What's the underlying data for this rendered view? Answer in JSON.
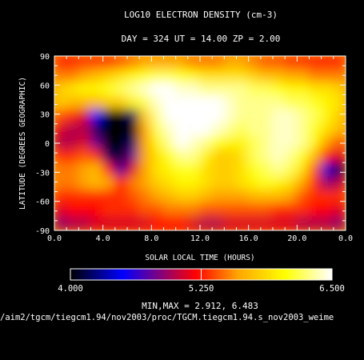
{
  "chart_data": {
    "type": "heatmap",
    "title": "LOG10 ELECTRON DENSITY (cm-3)",
    "subtitle": "DAY = 324   UT = 14.00   ZP =    2.00",
    "xlabel": "SOLAR LOCAL TIME (HOURS)",
    "ylabel": "LATITUDE (DEGREES GEOGRAPHIC)",
    "x_ticks": [
      "0.0",
      "4.0",
      "8.0",
      "12.0",
      "16.0",
      "20.0",
      "0.0"
    ],
    "y_ticks": [
      "90",
      "60",
      "30",
      "0",
      "-30",
      "-60",
      "-90"
    ],
    "xlim": [
      0,
      24
    ],
    "ylim": [
      -90,
      90
    ],
    "colorbar": {
      "min": 4.0,
      "max": 6.5,
      "tick_labels": [
        "4.000",
        "5.250",
        "6.500"
      ],
      "colors": [
        "#000000",
        "#0000ff",
        "#ff0000",
        "#ffa500",
        "#ffff00",
        "#ffffff"
      ]
    },
    "minmax_text": "MIN,MAX =       2.912,     6.483",
    "footer": "/aim2/tgcm/tiegcm1.94/nov2003/proc/TGCM.tiegcm1.94.s_nov2003_weime",
    "z_values": [
      [
        5.25,
        5.25,
        5.3,
        5.3,
        5.3,
        5.4,
        5.5,
        5.6,
        5.6,
        5.6,
        5.6,
        5.5,
        5.5,
        5.5,
        5.6,
        5.6,
        5.5,
        5.4,
        5.4,
        5.3,
        5.3,
        5.25,
        5.25,
        5.25
      ],
      [
        5.5,
        5.5,
        5.6,
        5.7,
        5.8,
        5.9,
        6.0,
        6.1,
        6.2,
        6.2,
        6.1,
        6.0,
        5.9,
        5.9,
        5.9,
        5.9,
        5.8,
        5.7,
        5.7,
        5.6,
        5.6,
        5.5,
        5.5,
        5.5
      ],
      [
        5.8,
        5.9,
        6.0,
        6.0,
        6.1,
        6.2,
        6.3,
        6.4,
        6.5,
        6.5,
        6.4,
        6.4,
        6.3,
        6.3,
        6.3,
        6.3,
        6.2,
        6.2,
        6.1,
        6.0,
        6.0,
        5.9,
        5.9,
        5.8
      ],
      [
        5.8,
        5.7,
        5.7,
        5.7,
        5.8,
        5.8,
        6.0,
        6.2,
        6.4,
        6.5,
        6.5,
        6.5,
        6.5,
        6.5,
        6.4,
        6.3,
        6.3,
        6.3,
        6.3,
        6.2,
        6.2,
        6.1,
        6.0,
        5.9
      ],
      [
        5.4,
        5.3,
        5.1,
        4.5,
        4.0,
        3.8,
        4.2,
        5.8,
        6.3,
        6.5,
        6.5,
        6.5,
        6.5,
        6.5,
        6.4,
        6.3,
        6.3,
        6.3,
        6.4,
        6.4,
        6.3,
        6.2,
        6.0,
        5.8
      ],
      [
        5.1,
        5.0,
        5.0,
        4.2,
        3.5,
        3.0,
        3.8,
        5.6,
        6.2,
        6.4,
        6.5,
        6.5,
        6.5,
        6.4,
        6.3,
        6.2,
        6.3,
        6.3,
        6.4,
        6.4,
        6.3,
        6.1,
        5.9,
        5.7
      ],
      [
        5.0,
        5.0,
        5.1,
        4.8,
        3.6,
        3.2,
        4.2,
        5.6,
        6.0,
        6.3,
        6.5,
        6.4,
        6.3,
        6.1,
        6.0,
        6.0,
        6.2,
        6.3,
        6.4,
        6.4,
        6.3,
        6.0,
        5.6,
        5.4
      ],
      [
        5.3,
        5.3,
        5.4,
        5.3,
        4.2,
        3.8,
        4.8,
        5.6,
        5.9,
        6.1,
        6.3,
        6.3,
        6.0,
        5.8,
        5.8,
        5.9,
        6.2,
        6.3,
        6.4,
        6.3,
        6.1,
        5.7,
        5.2,
        5.1
      ],
      [
        5.5,
        5.5,
        5.6,
        5.7,
        5.2,
        4.3,
        5.1,
        5.6,
        5.9,
        6.0,
        6.1,
        6.1,
        5.9,
        5.8,
        5.8,
        5.9,
        6.1,
        6.2,
        6.3,
        6.2,
        5.9,
        5.4,
        4.4,
        4.2
      ],
      [
        5.5,
        5.5,
        5.6,
        5.7,
        5.6,
        5.2,
        5.5,
        5.6,
        5.8,
        5.9,
        6.0,
        6.0,
        5.9,
        5.8,
        5.8,
        5.9,
        6.0,
        6.1,
        6.0,
        5.9,
        5.6,
        5.3,
        4.9,
        5.0
      ],
      [
        5.3,
        5.3,
        5.3,
        5.3,
        5.3,
        5.3,
        5.4,
        5.5,
        5.6,
        5.7,
        5.8,
        5.8,
        5.7,
        5.6,
        5.6,
        5.6,
        5.7,
        5.7,
        5.7,
        5.6,
        5.4,
        5.3,
        5.3,
        5.3
      ],
      [
        5.1,
        5.2,
        5.2,
        5.2,
        5.3,
        5.3,
        5.3,
        5.4,
        5.4,
        5.5,
        5.5,
        5.5,
        5.4,
        5.4,
        5.4,
        5.4,
        5.4,
        5.4,
        5.3,
        5.3,
        5.3,
        5.2,
        5.2,
        5.1
      ],
      [
        4.9,
        5.0,
        5.0,
        5.1,
        5.1,
        5.1,
        5.1,
        5.1,
        5.2,
        5.2,
        5.2,
        5.1,
        5.0,
        5.0,
        5.1,
        5.1,
        5.1,
        5.1,
        5.1,
        5.1,
        5.0,
        5.0,
        5.0,
        4.9
      ]
    ]
  }
}
